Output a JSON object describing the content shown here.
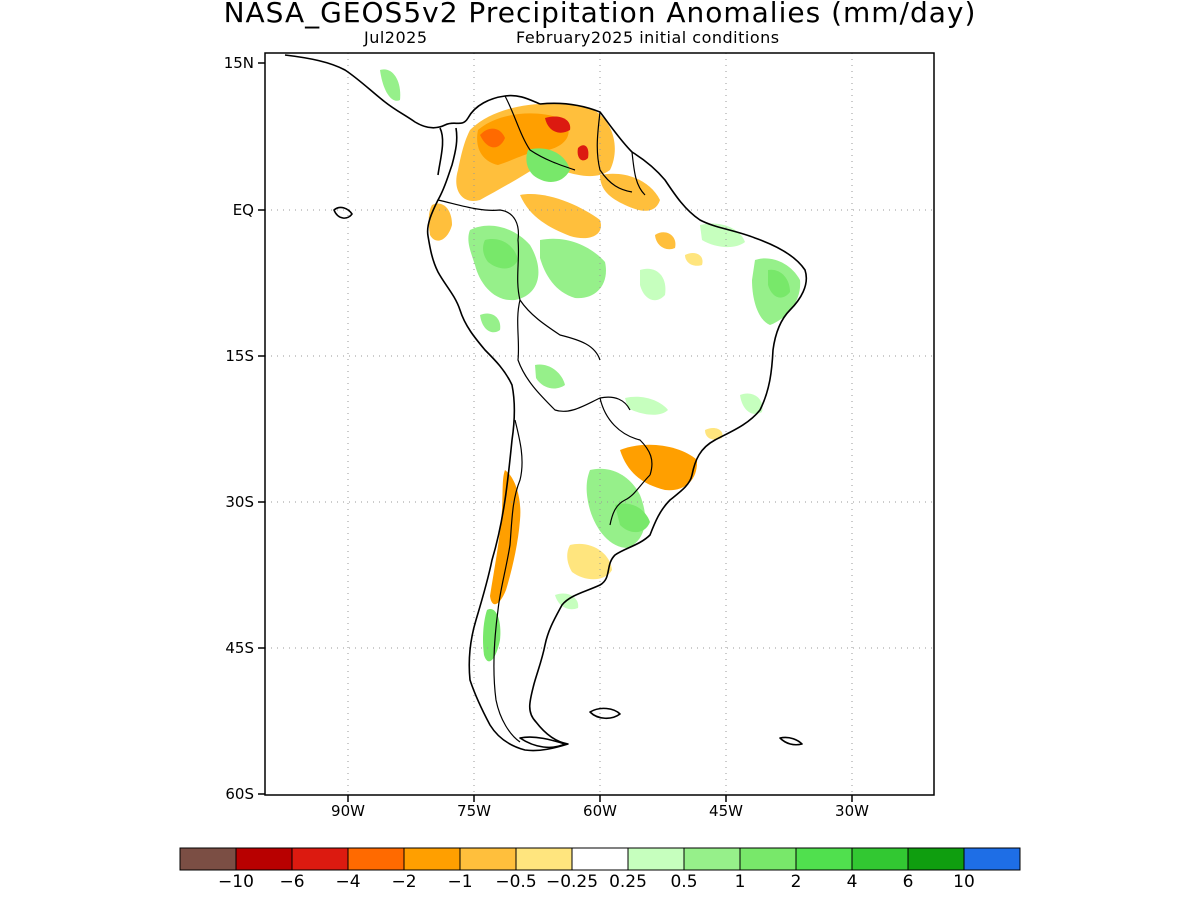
{
  "title": "NASA_GEOS5v2 Precipitation Anomalies (mm/day)",
  "subtitle_left": "Jul2025",
  "subtitle_right": "February2025 initial conditions",
  "lat_labels": [
    "15N",
    "EQ",
    "15S",
    "30S",
    "45S",
    "60S"
  ],
  "lon_labels": [
    "90W",
    "75W",
    "60W",
    "45W",
    "30W"
  ],
  "colorbar": {
    "colors": [
      "#7b4e44",
      "#b80000",
      "#dc1a10",
      "#ff6a00",
      "#ff9f00",
      "#ffbf3c",
      "#ffe57e",
      "#ffffff",
      "#c6ffbe",
      "#96f08a",
      "#78e86a",
      "#50e04e",
      "#32c832",
      "#0f9e0f",
      "#1e6ee6"
    ],
    "labels": [
      "−10",
      "−6",
      "−4",
      "−2",
      "−1",
      "−0.5",
      "−0.25",
      "0.25",
      "0.5",
      "1",
      "2",
      "4",
      "6",
      "10"
    ]
  }
}
